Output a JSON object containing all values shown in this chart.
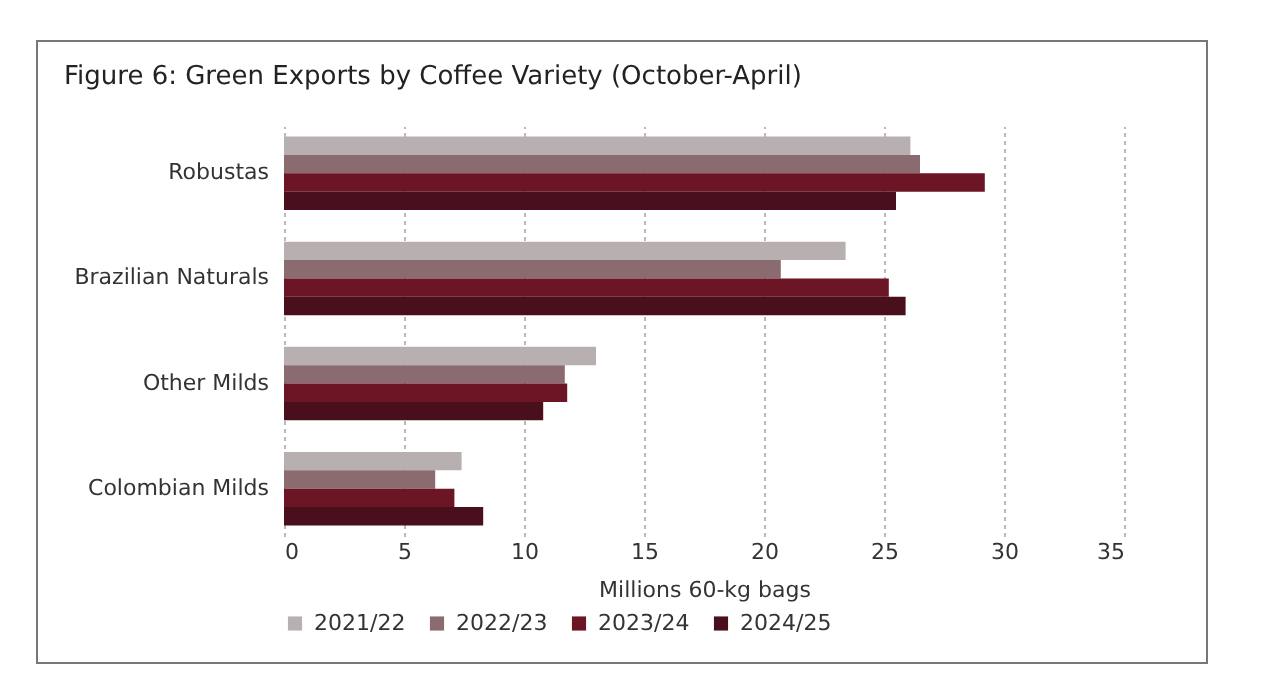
{
  "chart_data": {
    "type": "bar",
    "orientation": "horizontal",
    "title": "Figure 6: Green Exports by Coffee Variety (October-April)",
    "xlabel": "Millions 60-kg bags",
    "categories": [
      "Robustas",
      "Brazilian Naturals",
      "Other Milds",
      "Colombian Milds"
    ],
    "series": [
      {
        "name": "2021/22",
        "color": "#b8b0b0",
        "values": [
          26.1,
          23.4,
          13.0,
          7.4
        ]
      },
      {
        "name": "2022/23",
        "color": "#8a6b70",
        "values": [
          26.5,
          20.7,
          11.7,
          6.3
        ]
      },
      {
        "name": "2023/24",
        "color": "#6b1525",
        "values": [
          29.2,
          25.2,
          11.8,
          7.1
        ]
      },
      {
        "name": "2024/25",
        "color": "#4a0f1c",
        "values": [
          25.5,
          25.9,
          10.8,
          8.3
        ]
      }
    ],
    "xlim": [
      0,
      35
    ],
    "xticks": [
      0,
      5,
      10,
      15,
      20,
      25,
      30,
      35
    ],
    "grid": "x",
    "legend": "bottom"
  }
}
